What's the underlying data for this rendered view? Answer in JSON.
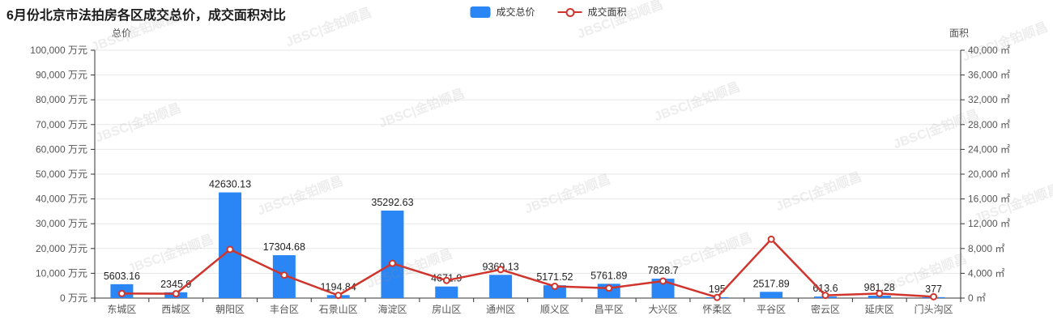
{
  "title": "6月份北京市法拍房各区成交总价，成交面积对比",
  "legend": {
    "items": [
      {
        "label": "成交总价",
        "type": "bar",
        "color": "#2b86f5"
      },
      {
        "label": "成交面积",
        "type": "line",
        "color": "#cf352c"
      }
    ]
  },
  "watermark_text": "JBSC|金铂顺昌",
  "colors": {
    "bar": "#2b86f5",
    "line": "#cf352c",
    "axis": "#333333",
    "grid": "#e7e7e7",
    "tick_text": "#555555",
    "value_label": "#222222"
  },
  "chart_data": {
    "type": "bar",
    "title": "6月份北京市法拍房各区成交总价，成交面积对比",
    "categories": [
      "东城区",
      "西城区",
      "朝阳区",
      "丰台区",
      "石景山区",
      "海淀区",
      "房山区",
      "通州区",
      "顺义区",
      "昌平区",
      "大兴区",
      "怀柔区",
      "平谷区",
      "密云区",
      "延庆区",
      "门头沟区"
    ],
    "series": [
      {
        "name": "成交总价",
        "type": "bar",
        "axis": "left",
        "unit": "万元",
        "color": "#2b86f5",
        "values": [
          5603.16,
          2345.9,
          42630.13,
          17304.68,
          1194.84,
          35292.63,
          4671.9,
          9369.13,
          5171.52,
          5761.89,
          7828.7,
          195,
          2517.89,
          613.6,
          981.28,
          377
        ],
        "labels_visible": true
      },
      {
        "name": "成交面积",
        "type": "line",
        "axis": "right",
        "unit": "㎡",
        "color": "#cf352c",
        "values": [
          740,
          700,
          7850,
          3700,
          440,
          5600,
          2850,
          4600,
          1900,
          1600,
          2750,
          100,
          9500,
          440,
          740,
          220
        ],
        "labels_visible": false,
        "estimated": true
      }
    ],
    "left_axis": {
      "name": "总价",
      "min": 0,
      "max": 100000,
      "interval": 10000,
      "unit": "万元"
    },
    "right_axis": {
      "name": "面积",
      "min": 0,
      "max": 40000,
      "interval": 4000,
      "unit": "㎡"
    },
    "grid": true,
    "legend_position": "top-center"
  }
}
